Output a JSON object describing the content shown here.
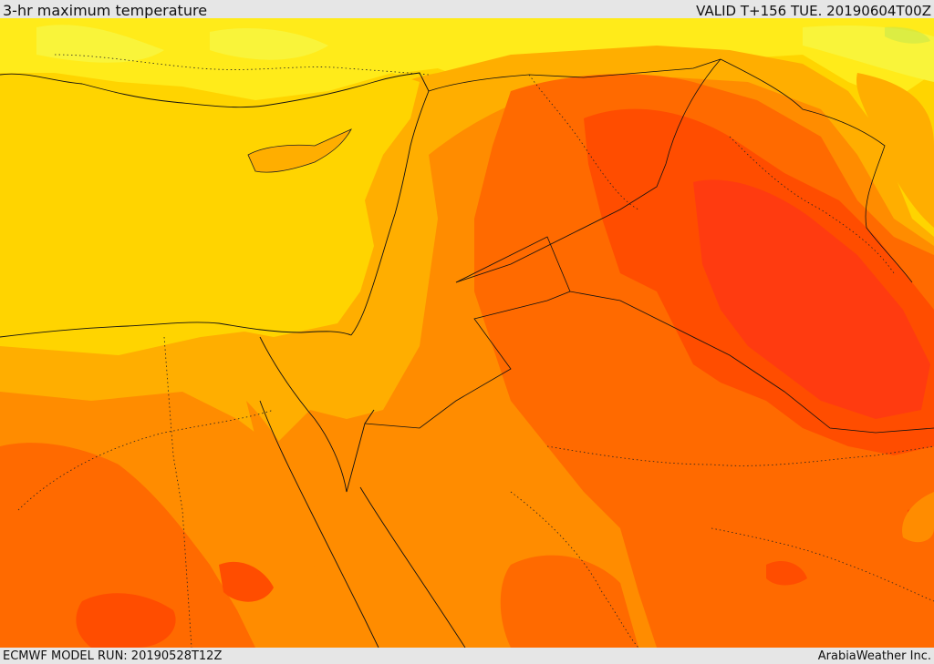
{
  "header": {
    "title": "3-hr maximum temperature",
    "valid": "VALID T+156 TUE. 20190604T00Z"
  },
  "footer": {
    "model_run": "ECMWF MODEL RUN: 20190528T12Z",
    "credit": "ArabiaWeather Inc."
  },
  "map": {
    "variable": "3-hr maximum temperature",
    "colors": {
      "sea_yellow": "#ffd400",
      "light_yellow": "#ffeb1a",
      "pale_yellow": "#f9f43a",
      "amber": "#ffae00",
      "orange": "#ff8c00",
      "deep_orange": "#ff6a00",
      "red_orange": "#ff4d00",
      "hot_red": "#ff3b10",
      "green_tint": "#c8e84a"
    }
  }
}
